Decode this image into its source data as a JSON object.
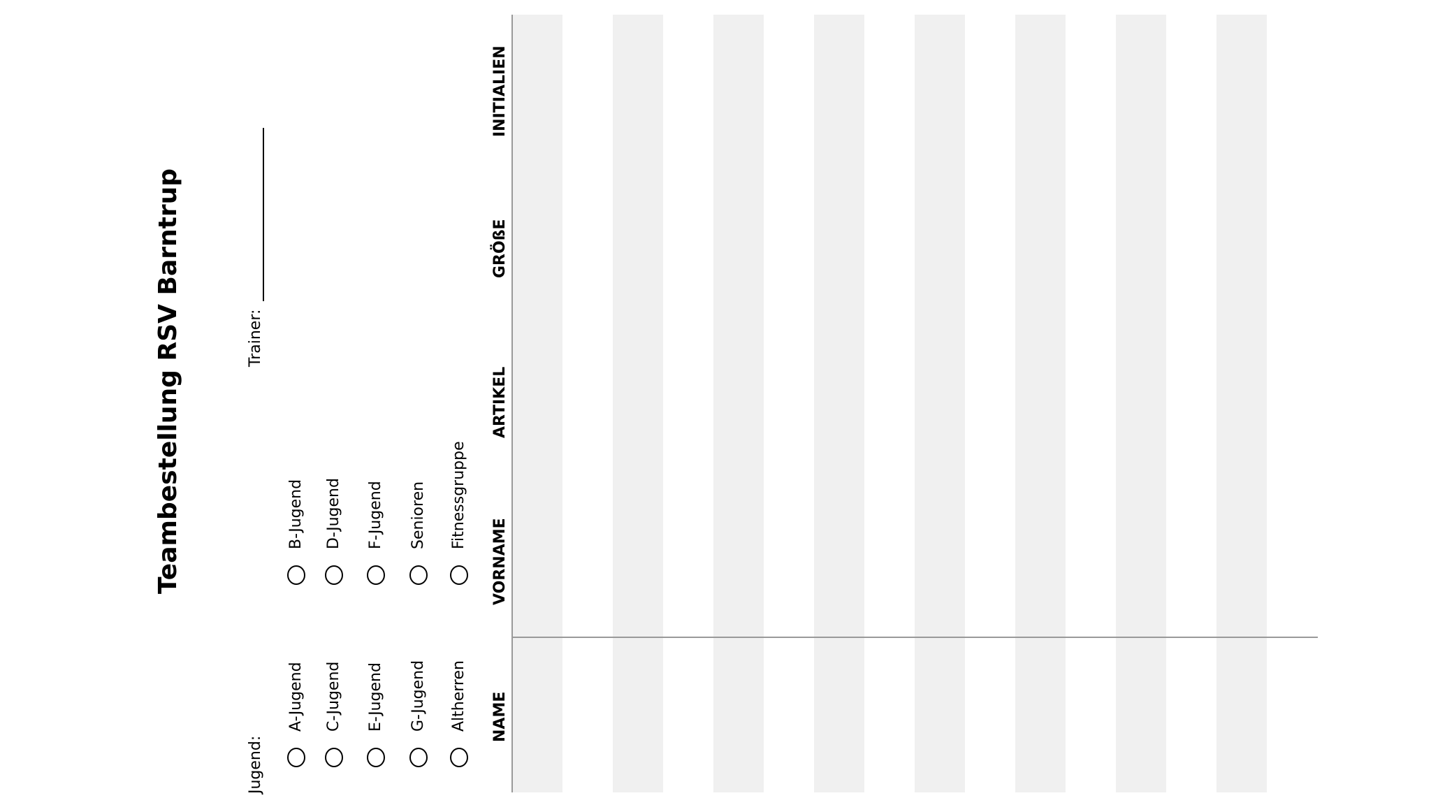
{
  "title": "Teambestellung RSV Barntrup",
  "trainer_label": "Trainer:",
  "jugend_label": "Jugend:",
  "options": [
    "A-Jugend",
    "B-Jugend",
    "C-Jugend",
    "D-Jugend",
    "E-Jugend",
    "F-Jugend",
    "G-Jugend",
    "Senioren",
    "Altherren",
    "Fitnessgruppe"
  ],
  "columns": [
    "NAME",
    "VORNAME",
    "ARTIKEL",
    "GRÖßE",
    "INITIALIEN"
  ]
}
